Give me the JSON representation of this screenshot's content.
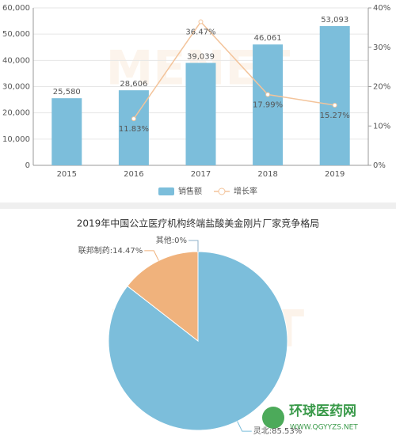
{
  "watermark": "MENET",
  "logo": {
    "name": "环球医药网",
    "url": "WWW.QGYYZS.NET"
  },
  "chart_data": [
    {
      "type": "bar-line",
      "categories": [
        "2015",
        "2016",
        "2017",
        "2018",
        "2019"
      ],
      "series": [
        {
          "name": "销售额",
          "type": "bar",
          "color": "#7cbedb",
          "values": [
            25580,
            28606,
            39039,
            46061,
            53093
          ],
          "value_labels": [
            "25,580",
            "28,606",
            "39,039",
            "46,061",
            "53,093"
          ]
        },
        {
          "name": "增长率",
          "type": "line",
          "axis": "y2",
          "color": "#f3c49b",
          "values": [
            null,
            11.83,
            36.47,
            17.99,
            15.27
          ],
          "value_labels": [
            null,
            "11.83%",
            "36.47%",
            "17.99%",
            "15.27%"
          ]
        }
      ],
      "ylim": [
        0,
        60000
      ],
      "yticks": [
        0,
        {
          "value": 10000,
          "label": "10,000"
        },
        {
          "value": 20000,
          "label": "20,000"
        },
        {
          "value": 30000,
          "label": "30,000"
        },
        {
          "value": 40000,
          "label": "40,000"
        },
        {
          "value": 50000,
          "label": "50,000"
        },
        {
          "value": 60000,
          "label": "60,000"
        }
      ],
      "y2lim": [
        0,
        40
      ],
      "y2ticks": [
        {
          "value": 0,
          "label": "0%"
        },
        {
          "value": 10,
          "label": "10%"
        },
        {
          "value": 20,
          "label": "20%"
        },
        {
          "value": 30,
          "label": "30%"
        },
        {
          "value": 40,
          "label": "40%"
        }
      ],
      "grid": true,
      "legend": "bottom"
    },
    {
      "type": "pie",
      "title": "2019年中国公立医疗机构终端盐酸美金刚片厂家竞争格局",
      "categories": [
        "灵北",
        "联邦制药",
        "其他"
      ],
      "values": [
        85.53,
        14.47,
        0
      ],
      "value_labels": [
        "灵北:85.53%",
        "联邦制药:14.47%",
        "其他:0%"
      ],
      "colors": [
        "#7cbedb",
        "#f0b27c",
        "#8fb0c8"
      ]
    }
  ]
}
